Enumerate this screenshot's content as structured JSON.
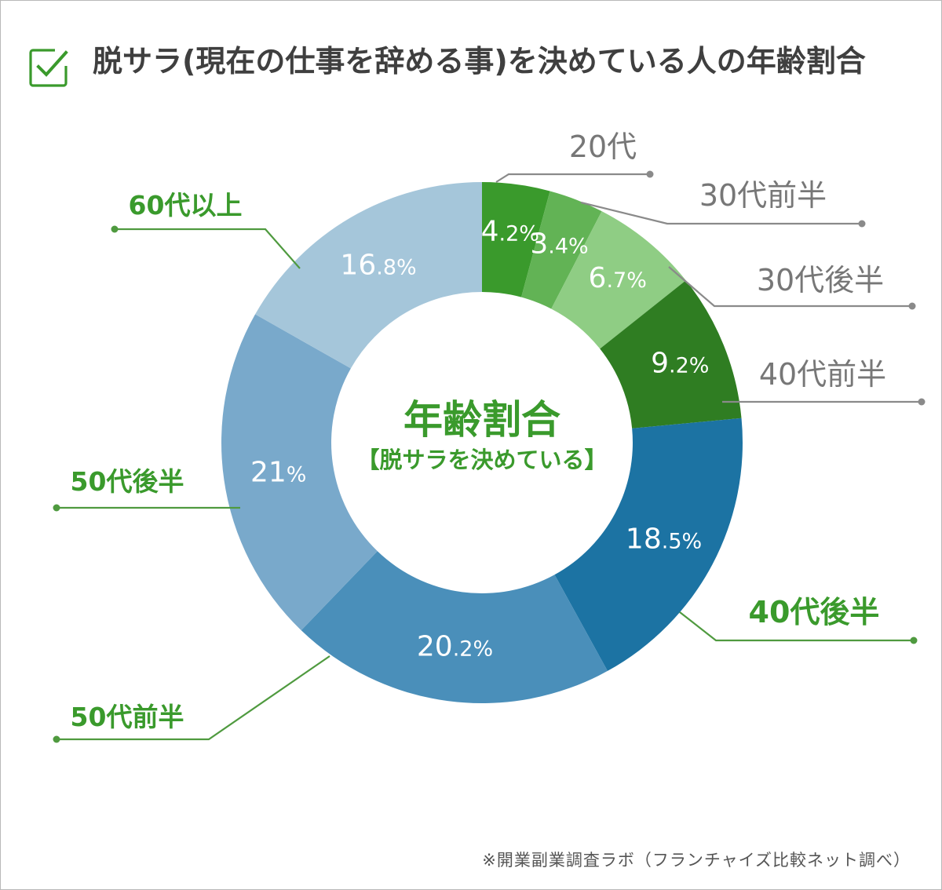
{
  "title": "脱サラ(現在の仕事を辞める事)を決めている人の年齢割合",
  "source": "※開業副業調査ラボ（フランチャイズ比較ネット調べ）",
  "colors": {
    "accent": "#3a9a2c",
    "label_dark": "#777777",
    "leader_green": "#4f9a3f",
    "leader_gray": "#8a8a8a"
  },
  "icon": "checkbox-checked-icon",
  "chart_data": {
    "type": "pie",
    "center_title": "年齢割合",
    "center_subtitle": "【脱サラを決めている】",
    "categories": [
      "20代",
      "30代前半",
      "30代後半",
      "40代前半",
      "40代後半",
      "50代前半",
      "50代後半",
      "60代以上"
    ],
    "values": [
      4.2,
      3.4,
      6.7,
      9.2,
      18.5,
      20.2,
      21,
      16.8
    ],
    "value_labels": [
      "4.2%",
      "3.4%",
      "6.7%",
      "9.2%",
      "18.5%",
      "20.2%",
      "21%",
      "16.8%"
    ],
    "colors": [
      "#3a9a2c",
      "#62b355",
      "#8fcd84",
      "#2f7d22",
      "#1c73a3",
      "#4a8fba",
      "#79a9cb",
      "#a5c6da"
    ],
    "legend": "leader-line labels"
  }
}
